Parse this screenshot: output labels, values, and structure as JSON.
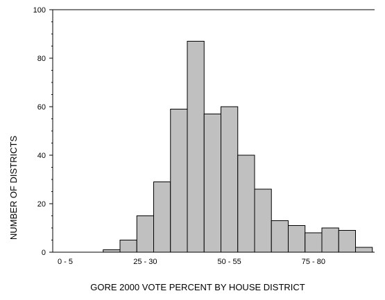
{
  "chart_data": {
    "type": "bar",
    "title": "",
    "xlabel": "GORE 2000 VOTE PERCENT BY HOUSE DISTRICT",
    "ylabel": "NUMBER OF DISTRICTS",
    "ylim": [
      0,
      100
    ],
    "yticks": [
      "0",
      "20",
      "40",
      "60",
      "80",
      "100"
    ],
    "xtick_labels": [
      "0 - 5",
      "25 - 30",
      "50 - 55",
      "75 - 80"
    ],
    "categories": [
      "0 - 5",
      "5 - 10",
      "10 - 15",
      "15 - 20",
      "20 - 25",
      "25 - 30",
      "30 - 35",
      "35 - 40",
      "40 - 45",
      "45 - 50",
      "50 - 55",
      "55 - 60",
      "60 - 65",
      "65 - 70",
      "70 - 75",
      "75 - 80",
      "80 - 85",
      "85 - 90",
      "90 - 95",
      "95 - 100"
    ],
    "values": [
      0,
      0,
      0,
      1,
      5,
      15,
      29,
      59,
      87,
      57,
      60,
      40,
      26,
      13,
      11,
      8,
      10,
      9,
      2,
      0
    ],
    "bar_color": "#c0c0c0",
    "bar_edge_color": "#000000",
    "grid": false,
    "legend": "none"
  }
}
